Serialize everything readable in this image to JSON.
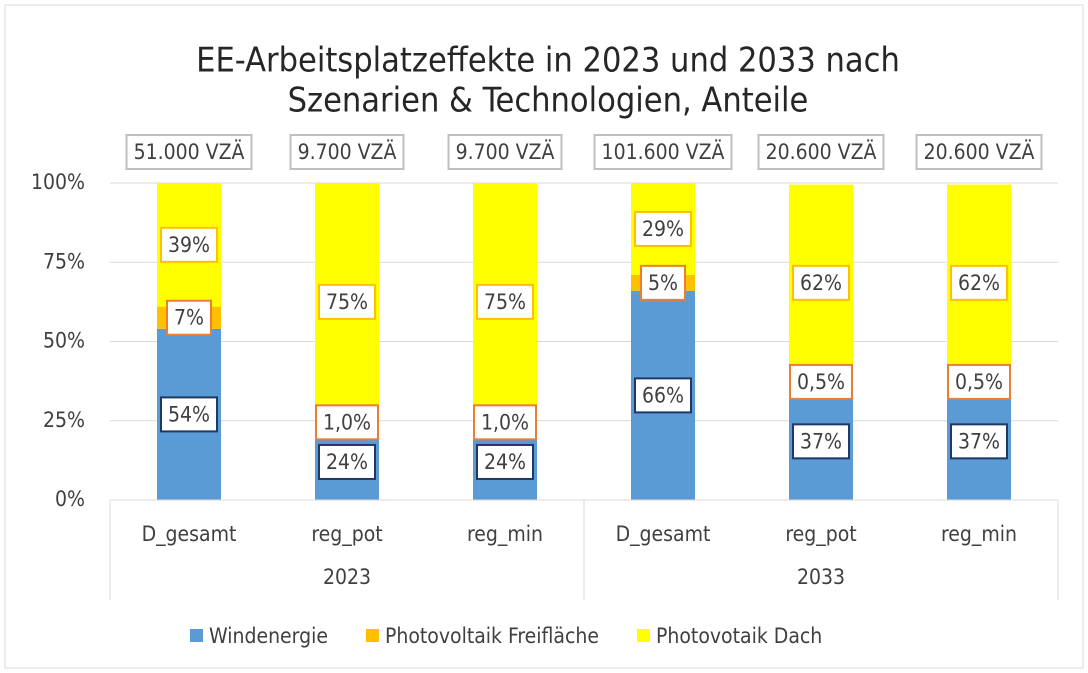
{
  "chart_data": {
    "type": "stacked_bar",
    "title": [
      "EE-Arbeitsplatzeffekte in 2023 und 2033 nach",
      "Szenarien & Technologien, Anteile"
    ],
    "categories": [
      "D_gesamt",
      "reg_pot",
      "reg_min",
      "D_gesamt",
      "reg_pot",
      "reg_min"
    ],
    "groups": [
      "2023",
      "2033"
    ],
    "total_labels": [
      "51.000 VZÄ",
      "9.700 VZÄ",
      "9.700 VZÄ",
      "101.600 VZÄ",
      "20.600 VZÄ",
      "20.600 VZÄ"
    ],
    "series": [
      {
        "name": "Windenergie",
        "color": "#5b9bd5",
        "label_border": "#1f3864",
        "values": [
          54,
          24,
          24,
          66,
          37,
          37
        ],
        "value_labels": [
          "54%",
          "24%",
          "24%",
          "66%",
          "37%",
          "37%"
        ]
      },
      {
        "name": "Photovoltaik Freifläche",
        "color": "#ffc000",
        "label_border": "#ed7d31",
        "values": [
          7,
          1,
          1,
          5,
          0.5,
          0.5
        ],
        "value_labels": [
          "7%",
          "1,0%",
          "1,0%",
          "5%",
          "0,5%",
          "0,5%"
        ]
      },
      {
        "name": "Photovotaik Dach",
        "color": "#ffff00",
        "label_border": "#ffc000",
        "values": [
          39,
          75,
          75,
          29,
          62,
          62
        ],
        "value_labels": [
          "39%",
          "75%",
          "75%",
          "29%",
          "62%",
          "62%"
        ]
      }
    ],
    "ylim": [
      0,
      100
    ],
    "yticks": [
      {
        "value": 0,
        "label": "0%"
      },
      {
        "value": 25,
        "label": "25%"
      },
      {
        "value": 50,
        "label": "50%"
      },
      {
        "value": 75,
        "label": "75%"
      },
      {
        "value": 100,
        "label": "100%"
      }
    ],
    "grid": true,
    "legend": "bottom"
  }
}
